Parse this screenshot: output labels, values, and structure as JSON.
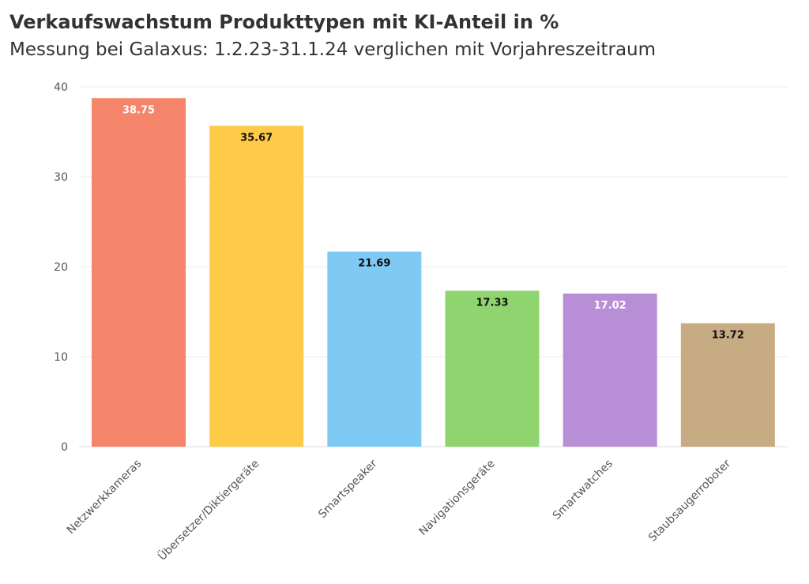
{
  "chart_data": {
    "type": "bar",
    "title": "Verkaufswachstum Produkttypen mit KI-Anteil in %",
    "subtitle": "Messung bei Galaxus: 1.2.23-31.1.24 verglichen mit Vorjahreszeitraum",
    "categories": [
      "Netzwerkkameras",
      "Übersetzer/Diktiergeräte",
      "Smartspeaker",
      "Navigationsgeräte",
      "Smartwatches",
      "Staubsaugerroboter"
    ],
    "values": [
      38.75,
      35.67,
      21.69,
      17.33,
      17.02,
      13.72
    ],
    "data_labels": [
      "38.75",
      "35.67",
      "21.69",
      "17.33",
      "17.02",
      "13.72"
    ],
    "colors": [
      "#F4856A",
      "#FDCB48",
      "#7FCAF5",
      "#90D46F",
      "#B88FD6",
      "#C7AB83"
    ],
    "label_colors": [
      "#ffffff",
      "#111111",
      "#111111",
      "#111111",
      "#ffffff",
      "#111111"
    ],
    "yticks": [
      "0",
      "10",
      "20",
      "30",
      "40"
    ],
    "ylim": [
      0,
      40
    ],
    "grid": true,
    "xlabel": "",
    "ylabel": ""
  }
}
